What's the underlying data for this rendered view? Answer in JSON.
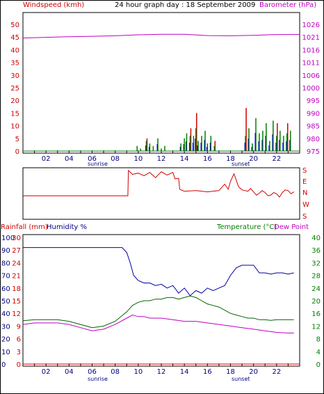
{
  "top_panel": {
    "title": "24 hour graph day : 18 September 2009",
    "left_axis_label": "Windspeed (kmh)",
    "right_axis_label": "Barometer (hPa)",
    "left_ticks": [
      "50",
      "45",
      "40",
      "35",
      "30",
      "25",
      "20",
      "15",
      "10",
      "5",
      "0"
    ],
    "right_ticks": [
      "1026",
      "1021",
      "1016",
      "1011",
      "1006",
      "1000",
      "995",
      "990",
      "985",
      "980",
      "975"
    ],
    "x_ticks": [
      "02",
      "04",
      "06",
      "08",
      "10",
      "12",
      "14",
      "16",
      "18",
      "20",
      "22"
    ],
    "sunrise_label": "sunrise",
    "sunset_label": "sunset"
  },
  "middle_panel": {
    "direction_labels": [
      "S",
      "E",
      "N",
      "W",
      "S"
    ]
  },
  "bottom_panel": {
    "rain_label": "Rainfall (mm)",
    "humidity_label": "Humidity %",
    "temp_label": "Temperature (°C)",
    "dew_label": "Dew Point",
    "humidity_ticks": [
      "100",
      "90",
      "80",
      "70",
      "60",
      "50",
      "40",
      "30",
      "20",
      "10",
      "0"
    ],
    "rain_ticks": [
      "30",
      "27",
      "24",
      "21",
      "18",
      "15",
      "12",
      "9",
      "6",
      "3",
      "0"
    ],
    "temp_ticks": [
      "40",
      "36",
      "32",
      "28",
      "24",
      "20",
      "16",
      "12",
      "8",
      "4",
      "0"
    ],
    "x_ticks": [
      "02",
      "04",
      "06",
      "08",
      "10",
      "12",
      "14",
      "16",
      "18",
      "20",
      "22"
    ],
    "sunrise_label": "sunrise",
    "sunset_label": "sunset"
  },
  "colors": {
    "wind_speed": "#008000",
    "wind_gust": "#d00000",
    "wind_avg": "#0000c0",
    "barometer": "#c000c0",
    "direction": "#d00000",
    "humidity": "#0000a0",
    "temperature": "#006400",
    "dew_point": "#c000c0",
    "rainfall": "#d00000",
    "axis_red": "#d00000",
    "axis_magenta": "#c000c0",
    "axis_green": "#008000",
    "axis_navy": "#000080"
  },
  "chart_data": [
    {
      "type": "line",
      "title": "24 hour graph day : 18 September 2009",
      "x_unit": "hour",
      "xlim": [
        0,
        24
      ],
      "series": [
        {
          "name": "Barometer (hPa)",
          "axis": "right",
          "ylim": [
            975,
            1026
          ],
          "x": [
            0,
            2,
            4,
            6,
            8,
            10,
            12,
            14,
            16,
            18,
            20,
            22,
            24
          ],
          "y": [
            1020.5,
            1020.8,
            1021.0,
            1021.2,
            1021.4,
            1021.8,
            1022.0,
            1022.0,
            1021.5,
            1021.4,
            1021.6,
            1021.9,
            1021.9
          ]
        }
      ],
      "bars": {
        "name": "Windspeed (kmh)",
        "axis": "left",
        "ylim": [
          0,
          50
        ],
        "hours": [
          9.9,
          10.2,
          10.7,
          11.0,
          11.3,
          11.7,
          12.0,
          12.3,
          13.7,
          14.0,
          14.2,
          14.5,
          14.8,
          15.0,
          15.2,
          15.5,
          15.8,
          16.0,
          16.3,
          16.6,
          19.3,
          19.6,
          19.9,
          20.2,
          20.5,
          20.8,
          21.1,
          21.4,
          21.7,
          22.0,
          22.3,
          22.6,
          22.9,
          23.2
        ],
        "speed": [
          2,
          1,
          4,
          3,
          2,
          5,
          1,
          2,
          3,
          5,
          7,
          6,
          6,
          9,
          4,
          6,
          8,
          3,
          6,
          2,
          6,
          9,
          3,
          13,
          7,
          8,
          11,
          4,
          12,
          6,
          8,
          6,
          7,
          8
        ],
        "gust": [
          0,
          0,
          5,
          0,
          0,
          0,
          0,
          0,
          0,
          0,
          0,
          9,
          0,
          15,
          0,
          0,
          0,
          0,
          0,
          4,
          17,
          0,
          0,
          0,
          0,
          0,
          0,
          0,
          0,
          11,
          0,
          0,
          11,
          0
        ]
      }
    },
    {
      "type": "line",
      "title": "",
      "axis_labels": [
        "S",
        "E",
        "N",
        "W",
        "S"
      ],
      "x_unit": "hour",
      "xlim": [
        0,
        24
      ],
      "series": [
        {
          "name": "Wind direction",
          "ylim": [
            0,
            360
          ],
          "x": [
            0,
            9.1,
            9.15,
            9.5,
            10.0,
            10.5,
            11.0,
            11.5,
            12.0,
            12.5,
            13.0,
            13.2,
            13.5,
            13.6,
            14.0,
            15.0,
            16.0,
            17.0,
            17.5,
            17.8,
            18.0,
            18.3,
            18.7,
            19.0,
            19.5,
            20.0,
            20.5,
            21.0,
            21.5,
            22.0,
            22.5,
            23.0,
            23.5
          ],
          "y": [
            200,
            200,
            5,
            35,
            25,
            45,
            20,
            60,
            15,
            40,
            20,
            70,
            65,
            150,
            165,
            160,
            170,
            160,
            110,
            150,
            90,
            30,
            130,
            155,
            165,
            170,
            180,
            175,
            195,
            185,
            175,
            160,
            170
          ]
        }
      ]
    },
    {
      "type": "line",
      "title": "",
      "x_unit": "hour",
      "xlim": [
        0,
        24
      ],
      "series": [
        {
          "name": "Humidity %",
          "axis": "humidity",
          "ylim": [
            0,
            100
          ],
          "x": [
            0,
            1,
            2,
            3,
            4,
            5,
            6,
            7,
            8,
            8.6,
            9.0,
            9.3,
            9.6,
            10,
            10.5,
            11,
            11.5,
            12,
            12.5,
            13,
            13.5,
            14,
            14.5,
            15,
            15.5,
            16,
            16.5,
            17,
            17.5,
            18,
            18.5,
            19,
            19.5,
            20,
            20.5,
            21,
            21.5,
            22,
            22.5,
            23,
            23.5
          ],
          "y": [
            92,
            92,
            92,
            92,
            92,
            92,
            92,
            92,
            92,
            92,
            88,
            80,
            70,
            66,
            64,
            64,
            62,
            63,
            60,
            62,
            56,
            60,
            54,
            58,
            56,
            60,
            58,
            60,
            62,
            70,
            76,
            78,
            78,
            78,
            72,
            72,
            71,
            72,
            72,
            71,
            72
          ]
        },
        {
          "name": "Temperature (°C)",
          "axis": "temp",
          "ylim": [
            0,
            40
          ],
          "x": [
            0,
            1,
            2,
            3,
            4,
            5,
            6,
            7,
            8,
            9,
            9.5,
            10,
            10.5,
            11,
            11.5,
            12,
            12.5,
            13,
            13.5,
            14,
            14.5,
            15,
            15.5,
            16,
            16.5,
            17,
            17.5,
            18,
            18.5,
            19,
            19.5,
            20,
            20.5,
            21,
            21.5,
            22,
            22.5,
            23,
            23.5
          ],
          "y": [
            13.7,
            14.0,
            14.0,
            14.0,
            13.5,
            12.5,
            11.5,
            12.0,
            13.5,
            16.5,
            18.5,
            19.5,
            20.0,
            20.0,
            20.5,
            20.5,
            21.0,
            21.0,
            20.5,
            21.0,
            21.5,
            21.0,
            20.0,
            19.0,
            18.5,
            18.0,
            17.0,
            16.0,
            15.5,
            15.0,
            14.5,
            14.5,
            14.0,
            14.0,
            13.8,
            14.0,
            14.0,
            14.0,
            14.0
          ]
        },
        {
          "name": "Dew Point",
          "axis": "temp",
          "ylim": [
            0,
            40
          ],
          "x": [
            0,
            1,
            2,
            3,
            4,
            5,
            6,
            7,
            8,
            9,
            9.5,
            10,
            10.5,
            11,
            11.5,
            12,
            13,
            14,
            15,
            16,
            17,
            18,
            19,
            20,
            21,
            22,
            23,
            23.5
          ],
          "y": [
            12.5,
            13.0,
            13.0,
            13.0,
            12.5,
            11.5,
            10.5,
            11.0,
            12.5,
            14.5,
            15.5,
            15.0,
            15.0,
            14.5,
            14.5,
            14.5,
            14.0,
            13.5,
            13.5,
            13.0,
            12.5,
            12.0,
            11.5,
            11.0,
            10.5,
            10.0,
            9.8,
            9.8
          ]
        },
        {
          "name": "Rainfall (mm)",
          "axis": "rain",
          "ylim": [
            0,
            30
          ],
          "x": [
            0,
            24
          ],
          "y": [
            0,
            0
          ]
        }
      ]
    }
  ]
}
